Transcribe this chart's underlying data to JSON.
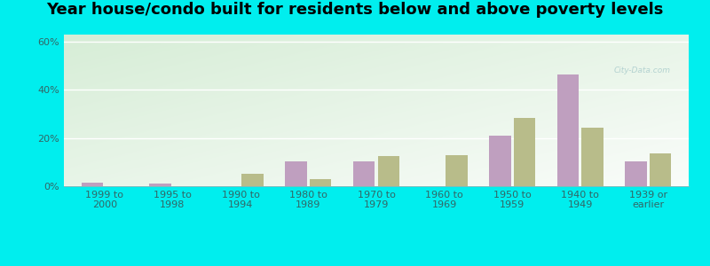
{
  "title": "Year house/condo built for residents below and above poverty levels",
  "categories": [
    "1999 to\n2000",
    "1995 to\n1998",
    "1990 to\n1994",
    "1980 to\n1989",
    "1970 to\n1979",
    "1960 to\n1969",
    "1950 to\n1959",
    "1940 to\n1949",
    "1939 or\nearlier"
  ],
  "below_poverty": [
    1.5,
    1.0,
    0.0,
    10.5,
    10.5,
    0.0,
    21.0,
    46.5,
    10.5
  ],
  "above_poverty": [
    0.0,
    0.0,
    5.0,
    3.0,
    12.5,
    13.0,
    28.5,
    24.5,
    13.5
  ],
  "below_color": "#bf9fbf",
  "above_color": "#b8bc8a",
  "background_color": "#00eeee",
  "ylim": [
    0,
    63
  ],
  "yticks": [
    0,
    20,
    40,
    60
  ],
  "ytick_labels": [
    "0%",
    "20%",
    "40%",
    "60%"
  ],
  "title_fontsize": 13,
  "tick_fontsize": 8,
  "legend_fontsize": 9,
  "bar_width": 0.32,
  "bar_gap": 0.04
}
